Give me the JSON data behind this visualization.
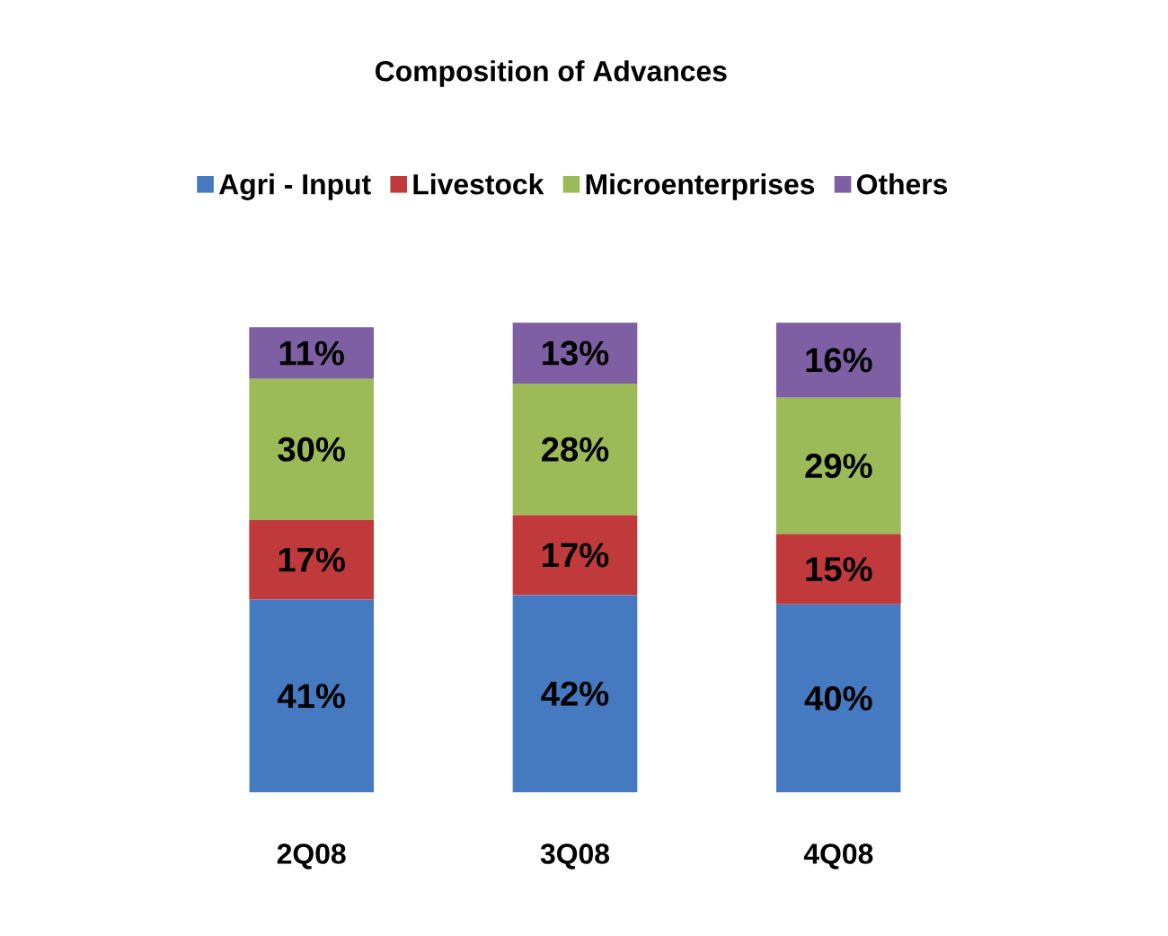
{
  "chart_data": {
    "type": "bar",
    "stacked": true,
    "title": "Composition of Advances",
    "categories": [
      "2Q08",
      "3Q08",
      "4Q08"
    ],
    "legend": "top",
    "series": [
      {
        "name": "Agri - Input",
        "color": "#4579c0",
        "values": [
          41,
          42,
          40
        ],
        "value_labels": [
          "41%",
          "42%",
          "40%"
        ]
      },
      {
        "name": "Livestock",
        "color": "#c0393b",
        "values": [
          17,
          17,
          15
        ],
        "value_labels": [
          "17%",
          "17%",
          "15%"
        ]
      },
      {
        "name": "Microenterprises",
        "color": "#9bbb59",
        "values": [
          30,
          28,
          29
        ],
        "value_labels": [
          "30%",
          "28%",
          "29%"
        ]
      },
      {
        "name": "Others",
        "color": "#7e5fa3",
        "values": [
          11,
          13,
          16
        ],
        "value_labels": [
          "11%",
          "13%",
          "16%"
        ]
      }
    ]
  }
}
